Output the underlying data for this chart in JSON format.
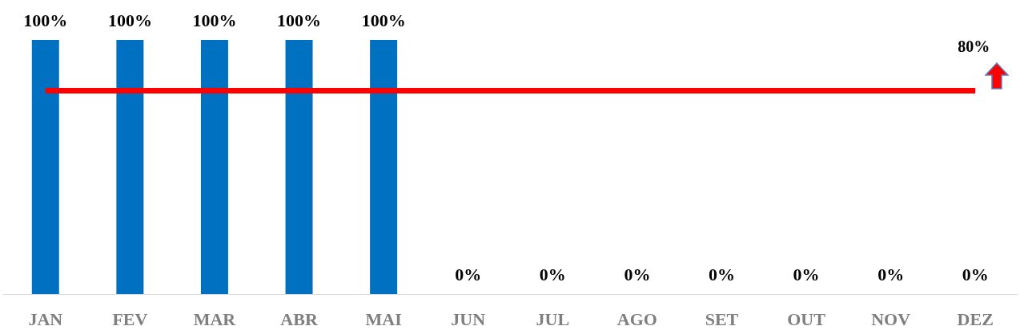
{
  "chart_data": {
    "type": "bar",
    "categories": [
      "JAN",
      "FEV",
      "MAR",
      "ABR",
      "MAI",
      "JUN",
      "JUL",
      "AGO",
      "SET",
      "OUT",
      "NOV",
      "DEZ"
    ],
    "values": [
      100,
      100,
      100,
      100,
      100,
      0,
      0,
      0,
      0,
      0,
      0,
      0
    ],
    "value_labels": [
      "100%",
      "100%",
      "100%",
      "100%",
      "100%",
      "0%",
      "0%",
      "0%",
      "0%",
      "0%",
      "0%",
      "0%"
    ],
    "color": "#0070c0",
    "ref_lines": [
      {
        "axis": "y",
        "value": 80,
        "label": "80%",
        "color": "#ff0000",
        "line_style": "solid"
      }
    ],
    "grid": false
  }
}
